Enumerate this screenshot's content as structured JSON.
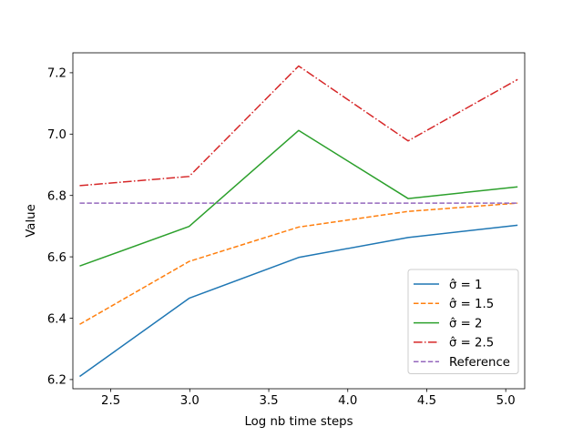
{
  "chart_data": {
    "type": "line",
    "xlabel": "Log nb time  steps",
    "ylabel": "Value",
    "xlim": [
      2.26,
      5.12
    ],
    "ylim": [
      6.17,
      7.265
    ],
    "xticks": [
      2.5,
      3.0,
      3.5,
      4.0,
      4.5,
      5.0
    ],
    "xtick_labels": [
      "2.5",
      "3.0",
      "3.5",
      "4.0",
      "4.5",
      "5.0"
    ],
    "yticks": [
      6.2,
      6.4,
      6.6,
      6.8,
      7.0,
      7.2
    ],
    "ytick_labels": [
      "6.2",
      "6.4",
      "6.6",
      "6.8",
      "7.0",
      "7.2"
    ],
    "grid": false,
    "legend_position": "lower-right",
    "x": [
      2.303,
      2.996,
      3.689,
      4.382,
      5.075
    ],
    "series": [
      {
        "name": "σ̂ =  1",
        "color": "#1f77b4",
        "dash": "solid",
        "values": [
          6.21,
          6.465,
          6.598,
          6.663,
          6.703
        ]
      },
      {
        "name": "σ̂ =  1.5",
        "color": "#ff7f0e",
        "dash": "dashed",
        "values": [
          6.38,
          6.585,
          6.697,
          6.748,
          6.775
        ]
      },
      {
        "name": "σ̂ =  2",
        "color": "#2ca02c",
        "dash": "solid",
        "values": [
          6.57,
          6.699,
          7.012,
          6.79,
          6.828
        ]
      },
      {
        "name": "σ̂ =  2.5",
        "color": "#d62728",
        "dash": "dashdot",
        "values": [
          6.832,
          6.862,
          7.222,
          6.978,
          7.178
        ]
      },
      {
        "name": "Reference",
        "color": "#9467bd",
        "dash": "dashed",
        "values": [
          6.775,
          6.775,
          6.775,
          6.775,
          6.775
        ]
      }
    ]
  }
}
